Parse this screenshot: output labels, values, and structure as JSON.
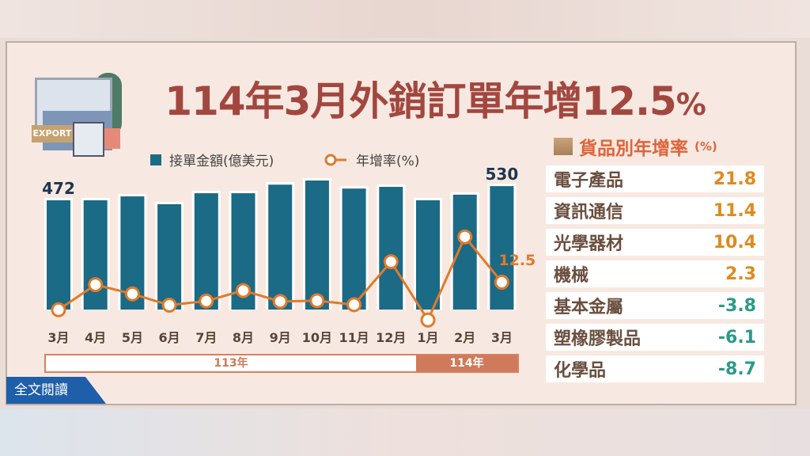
{
  "title": {
    "main": "114年3月外銷訂單年增",
    "value": "12.5",
    "unit": "%"
  },
  "illustration": {
    "label": "EXPORT"
  },
  "legend": {
    "bars": "接單金額(億美元)",
    "line": "年增率(%)"
  },
  "chart_data": {
    "type": "bar+line",
    "categories": [
      "3月",
      "4月",
      "5月",
      "6月",
      "7月",
      "8月",
      "9月",
      "10月",
      "11月",
      "12月",
      "1月",
      "2月",
      "3月"
    ],
    "series": [
      {
        "name": "接單金額(億美元)",
        "type": "bar",
        "values": [
          472,
          472,
          488,
          456,
          501,
          501,
          536,
          553,
          520,
          527,
          472,
          495,
          530
        ],
        "color": "#1b6a86"
      },
      {
        "name": "年增率(%)",
        "type": "line",
        "values": [
          1.2,
          11.5,
          7.7,
          3.1,
          4.8,
          9.1,
          4.6,
          4.9,
          3.3,
          20.9,
          -3.0,
          31.1,
          12.5
        ],
        "color": "#e07a2a"
      }
    ],
    "data_labels": {
      "first_bar": "472",
      "last_bar": "530",
      "last_line": "12.5"
    },
    "year_groups": [
      {
        "label": "113年",
        "months": 10
      },
      {
        "label": "114年",
        "months": 3
      }
    ]
  },
  "table": {
    "title": "貨品別年增率",
    "unit": "(%)",
    "rows": [
      {
        "label": "電子產品",
        "value": "21.8"
      },
      {
        "label": "資訊通信",
        "value": "11.4"
      },
      {
        "label": "光學器材",
        "value": "10.4"
      },
      {
        "label": "機械",
        "value": "2.3"
      },
      {
        "label": "基本金屬",
        "value": "-3.8"
      },
      {
        "label": "塑橡膠製品",
        "value": "-6.1"
      },
      {
        "label": "化學品",
        "value": "-8.7"
      }
    ],
    "colors": {
      "positive": "#e08a1e",
      "negative": "#2a9a8a"
    }
  },
  "read_more": "全文閱讀"
}
